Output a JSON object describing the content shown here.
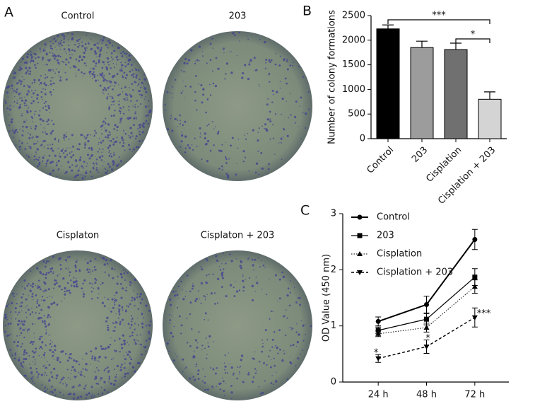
{
  "panels": {
    "a": "A",
    "b": "B",
    "c": "C"
  },
  "plates": [
    "Control",
    "203",
    "Cisplaton",
    "Cisplaton + 203"
  ],
  "chart_data": [
    {
      "type": "bar",
      "ylabel": "Number of colony formations",
      "categories": [
        "Control",
        "203",
        "Cisplation",
        "Cisplation + 203"
      ],
      "values": [
        2230,
        1850,
        1810,
        800
      ],
      "errors": [
        80,
        130,
        130,
        150
      ],
      "colors": [
        "#000000",
        "#9c9c9c",
        "#707070",
        "#d4d4d4"
      ],
      "ylim": [
        0,
        2500
      ],
      "yticks": [
        0,
        500,
        1000,
        1500,
        2000,
        2500
      ],
      "annotations": [
        "***",
        "*"
      ]
    },
    {
      "type": "line",
      "ylabel": "OD Value (450 nm)",
      "categories": [
        "24 h",
        "48 h",
        "72 h"
      ],
      "ylim": [
        0,
        3
      ],
      "yticks": [
        0,
        1,
        2,
        3
      ],
      "legend": "upper left",
      "series": [
        {
          "name": "Control",
          "color": "#000000",
          "values": [
            1.08,
            1.38,
            2.54
          ],
          "errors": [
            0.08,
            0.15,
            0.18
          ]
        },
        {
          "name": "203",
          "color": "#000000",
          "values": [
            0.92,
            1.12,
            1.87
          ],
          "errors": [
            0.06,
            0.1,
            0.15
          ]
        },
        {
          "name": "Cisplation",
          "color": "#000000",
          "values": [
            0.86,
            0.97,
            1.7
          ],
          "errors": [
            0.05,
            0.08,
            0.12
          ]
        },
        {
          "name": "Cisplation + 203",
          "color": "#000000",
          "values": [
            0.42,
            0.63,
            1.15
          ],
          "errors": [
            0.07,
            0.12,
            0.17
          ],
          "annotations": [
            "*",
            "*",
            "***"
          ]
        }
      ]
    }
  ]
}
